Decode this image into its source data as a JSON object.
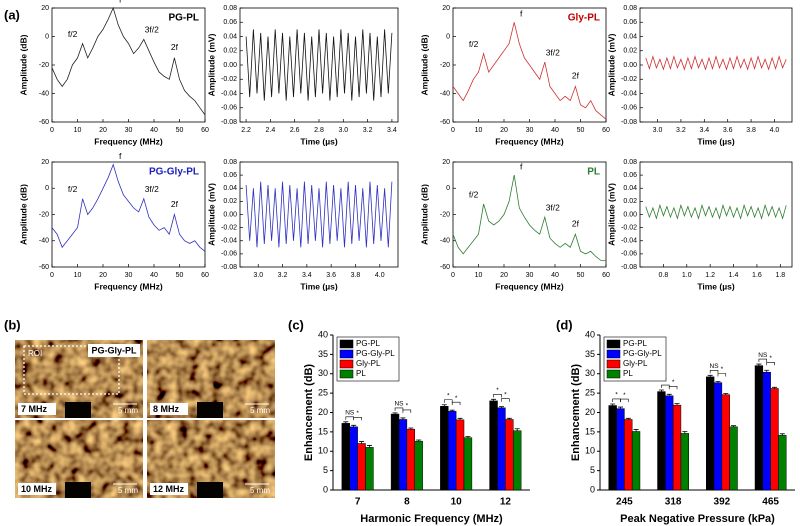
{
  "panels": [
    "(a)",
    "(b)",
    "(c)",
    "(d)"
  ],
  "images": {
    "roi": "ROI",
    "sample": "PG-Gly-PL",
    "tiles": [
      {
        "label": "7 MHz",
        "scale": "5 mm"
      },
      {
        "label": "8 MHz",
        "scale": "5 mm"
      },
      {
        "label": "10 MHz",
        "scale": "5 mm"
      },
      {
        "label": "12 MHz",
        "scale": "5 mm"
      }
    ]
  },
  "chart_data": [
    {
      "type": "line",
      "title": "PG-PL",
      "title_color": "#000000",
      "color": "#222222",
      "xlabel": "Frequency (MHz)",
      "ylabel": "Amplitude (dB)",
      "annotations": [
        "f/2",
        "f",
        "3f/2",
        "2f"
      ],
      "x": [
        0,
        2,
        4,
        6,
        8,
        10,
        12,
        14,
        16,
        18,
        20,
        22,
        24,
        26,
        28,
        30,
        32,
        34,
        36,
        38,
        40,
        42,
        44,
        46,
        48,
        50,
        52,
        54,
        56,
        58,
        60
      ],
      "values": [
        -22,
        -30,
        -35,
        -30,
        -20,
        -15,
        -5,
        -15,
        -8,
        0,
        5,
        12,
        20,
        8,
        0,
        -5,
        -12,
        -8,
        -2,
        -10,
        -18,
        -25,
        -28,
        -30,
        -15,
        -30,
        -38,
        -42,
        -45,
        -50,
        -55
      ],
      "xlim": [
        0,
        60
      ],
      "ylim": [
        -60,
        20
      ],
      "xticks": [
        0,
        10,
        20,
        30,
        40,
        50,
        60
      ],
      "yticks": [
        -60,
        -40,
        -20,
        0,
        20
      ]
    },
    {
      "type": "line",
      "color": "#111111",
      "xlabel": "Time (µs)",
      "ylabel": "Amplitude (mV)",
      "x": [
        2.2,
        2.23,
        2.26,
        2.29,
        2.32,
        2.35,
        2.38,
        2.41,
        2.44,
        2.47,
        2.5,
        2.53,
        2.56,
        2.59,
        2.62,
        2.65,
        2.68,
        2.71,
        2.74,
        2.77,
        2.8,
        2.83,
        2.86,
        2.89,
        2.92,
        2.95,
        2.98,
        3.01,
        3.04,
        3.07,
        3.1,
        3.13,
        3.16,
        3.19,
        3.22,
        3.25,
        3.28,
        3.31,
        3.34,
        3.37,
        3.4
      ],
      "values": [
        0.04,
        -0.045,
        0.05,
        -0.04,
        0.045,
        -0.05,
        0.04,
        -0.045,
        0.05,
        -0.04,
        0.045,
        -0.05,
        0.04,
        -0.045,
        0.05,
        -0.04,
        0.045,
        -0.05,
        0.04,
        -0.045,
        0.05,
        -0.04,
        0.045,
        -0.05,
        0.04,
        -0.045,
        0.05,
        -0.04,
        0.045,
        -0.05,
        0.04,
        -0.045,
        0.05,
        -0.04,
        0.045,
        -0.05,
        0.04,
        -0.045,
        0.05,
        -0.04,
        0.045
      ],
      "xlim": [
        2.15,
        3.45
      ],
      "ylim": [
        -0.08,
        0.08
      ],
      "xticks": [
        2.2,
        2.4,
        2.6,
        2.8,
        {
          "value": 3,
          "label": "3.0"
        },
        3.2,
        3.4
      ],
      "yticks": [
        -0.08,
        -0.06,
        -0.04,
        -0.02,
        {
          "value": 0,
          "label": "0.00"
        },
        0.02,
        0.04,
        0.06,
        0.08
      ]
    },
    {
      "type": "line",
      "title": "Gly-PL",
      "title_color": "#c00000",
      "color": "#d03030",
      "xlabel": "Frequency (MHz)",
      "ylabel": "Amplitude (dB)",
      "annotations": [
        "f/2",
        "f",
        "3f/2",
        "2f"
      ],
      "x": [
        0,
        2,
        4,
        6,
        8,
        10,
        12,
        14,
        16,
        18,
        20,
        22,
        24,
        26,
        28,
        30,
        32,
        34,
        36,
        38,
        40,
        42,
        44,
        46,
        48,
        50,
        52,
        54,
        56,
        58,
        60
      ],
      "values": [
        -35,
        -40,
        -45,
        -38,
        -30,
        -25,
        -12,
        -25,
        -20,
        -15,
        -10,
        -5,
        10,
        -5,
        -15,
        -20,
        -25,
        -30,
        -18,
        -35,
        -40,
        -45,
        -42,
        -45,
        -35,
        -48,
        -50,
        -45,
        -52,
        -55,
        -58
      ],
      "xlim": [
        0,
        60
      ],
      "ylim": [
        -60,
        20
      ],
      "xticks": [
        0,
        10,
        20,
        30,
        40,
        50,
        60
      ],
      "yticks": [
        -60,
        -40,
        -20,
        0,
        20
      ]
    },
    {
      "type": "line",
      "color": "#d03030",
      "xlabel": "Time (µs)",
      "ylabel": "Amplitude (mV)",
      "x": [
        2.9,
        2.93,
        2.96,
        2.99,
        3.02,
        3.05,
        3.08,
        3.11,
        3.14,
        3.17,
        3.2,
        3.23,
        3.26,
        3.29,
        3.32,
        3.35,
        3.38,
        3.41,
        3.44,
        3.47,
        3.5,
        3.53,
        3.56,
        3.59,
        3.62,
        3.65,
        3.68,
        3.71,
        3.74,
        3.77,
        3.8,
        3.83,
        3.86,
        3.89,
        3.92,
        3.95,
        3.98,
        4.01,
        4.04,
        4.07,
        4.1
      ],
      "values": [
        0.01,
        -0.005,
        0.012,
        -0.004,
        0.008,
        -0.006,
        0.01,
        -0.005,
        0.012,
        -0.004,
        0.008,
        -0.006,
        0.01,
        -0.005,
        0.012,
        -0.004,
        0.008,
        -0.006,
        0.01,
        -0.005,
        0.012,
        -0.004,
        0.008,
        -0.006,
        0.01,
        -0.005,
        0.012,
        -0.004,
        0.008,
        -0.006,
        0.01,
        -0.005,
        0.012,
        -0.004,
        0.008,
        -0.006,
        0.01,
        -0.005,
        0.012,
        -0.004,
        0.008
      ],
      "xlim": [
        2.85,
        4.15
      ],
      "ylim": [
        -0.08,
        0.08
      ],
      "xticks": [
        {
          "value": 3,
          "label": "3.0"
        },
        3.2,
        3.4,
        3.6,
        3.8,
        {
          "value": 4,
          "label": "4.0"
        }
      ],
      "yticks": [
        -0.08,
        -0.06,
        -0.04,
        -0.02,
        {
          "value": 0,
          "label": "0.00"
        },
        0.02,
        0.04,
        0.06,
        0.08
      ]
    },
    {
      "type": "line",
      "title": "PG-Gly-PL",
      "title_color": "#2020c0",
      "color": "#3030c0",
      "xlabel": "Frequency (MHz)",
      "ylabel": "Amplitude (dB)",
      "annotations": [
        "f/2",
        "f",
        "3f/2",
        "2f"
      ],
      "x": [
        0,
        2,
        4,
        6,
        8,
        10,
        12,
        14,
        16,
        18,
        20,
        22,
        24,
        26,
        28,
        30,
        32,
        34,
        36,
        38,
        40,
        42,
        44,
        46,
        48,
        50,
        52,
        54,
        56,
        58,
        60
      ],
      "values": [
        -30,
        -35,
        -45,
        -40,
        -35,
        -30,
        -8,
        -20,
        -15,
        -8,
        0,
        8,
        18,
        5,
        -5,
        -10,
        -15,
        -18,
        -8,
        -22,
        -28,
        -32,
        -30,
        -35,
        -20,
        -35,
        -40,
        -42,
        -40,
        -45,
        -48
      ],
      "xlim": [
        0,
        60
      ],
      "ylim": [
        -60,
        20
      ],
      "xticks": [
        0,
        10,
        20,
        30,
        40,
        50,
        60
      ],
      "yticks": [
        -60,
        -40,
        -20,
        0,
        20
      ]
    },
    {
      "type": "line",
      "color": "#3030c0",
      "xlabel": "Time (µs)",
      "ylabel": "Amplitude (mV)",
      "x": [
        2.9,
        2.93,
        2.96,
        2.99,
        3.02,
        3.05,
        3.08,
        3.11,
        3.14,
        3.17,
        3.2,
        3.23,
        3.26,
        3.29,
        3.32,
        3.35,
        3.38,
        3.41,
        3.44,
        3.47,
        3.5,
        3.53,
        3.56,
        3.59,
        3.62,
        3.65,
        3.68,
        3.71,
        3.74,
        3.77,
        3.8,
        3.83,
        3.86,
        3.89,
        3.92,
        3.95,
        3.98,
        4.01,
        4.04,
        4.07,
        4.1
      ],
      "values": [
        0.045,
        -0.04,
        0.04,
        -0.05,
        0.05,
        -0.045,
        0.045,
        -0.04,
        0.04,
        -0.05,
        0.05,
        -0.045,
        0.045,
        -0.04,
        0.04,
        -0.05,
        0.05,
        -0.045,
        0.045,
        -0.04,
        0.04,
        -0.05,
        0.05,
        -0.045,
        0.045,
        -0.04,
        0.04,
        -0.05,
        0.05,
        -0.045,
        0.045,
        -0.04,
        0.04,
        -0.05,
        0.05,
        -0.045,
        0.045,
        -0.04,
        0.04,
        -0.05,
        0.05
      ],
      "xlim": [
        2.85,
        4.15
      ],
      "ylim": [
        -0.08,
        0.08
      ],
      "xticks": [
        {
          "value": 3,
          "label": "3.0"
        },
        3.2,
        3.4,
        3.6,
        3.8,
        {
          "value": 4,
          "label": "4.0"
        }
      ],
      "yticks": [
        -0.08,
        -0.06,
        -0.04,
        -0.02,
        {
          "value": 0,
          "label": "0.00"
        },
        0.02,
        0.04,
        0.06,
        0.08
      ]
    },
    {
      "type": "line",
      "title": "PL",
      "title_color": "#2e7d32",
      "color": "#2e7d32",
      "xlabel": "Frequency (MHz)",
      "ylabel": "Amplitude (dB)",
      "annotations": [
        "f/2",
        "f",
        "3f/2",
        "2f"
      ],
      "x": [
        0,
        2,
        4,
        6,
        8,
        10,
        12,
        14,
        16,
        18,
        20,
        22,
        24,
        26,
        28,
        30,
        32,
        34,
        36,
        38,
        40,
        42,
        44,
        46,
        48,
        50,
        52,
        54,
        56,
        58,
        60
      ],
      "values": [
        -35,
        -45,
        -50,
        -45,
        -40,
        -35,
        -12,
        -25,
        -28,
        -25,
        -20,
        -10,
        10,
        -15,
        -22,
        -28,
        -32,
        -35,
        -22,
        -38,
        -42,
        -45,
        -42,
        -45,
        -35,
        -48,
        -50,
        -48,
        -52,
        -55,
        -55
      ],
      "xlim": [
        0,
        60
      ],
      "ylim": [
        -60,
        20
      ],
      "xticks": [
        0,
        10,
        20,
        30,
        40,
        50,
        60
      ],
      "yticks": [
        -60,
        -40,
        -20,
        0,
        20
      ]
    },
    {
      "type": "line",
      "color": "#2e7d32",
      "xlabel": "Time (µs)",
      "ylabel": "Amplitude (mV)",
      "x": [
        0.65,
        0.68,
        0.71,
        0.74,
        0.77,
        0.8,
        0.83,
        0.86,
        0.89,
        0.92,
        0.95,
        0.98,
        1.01,
        1.04,
        1.07,
        1.1,
        1.13,
        1.16,
        1.19,
        1.22,
        1.25,
        1.28,
        1.31,
        1.34,
        1.37,
        1.4,
        1.43,
        1.46,
        1.49,
        1.52,
        1.55,
        1.58,
        1.61,
        1.64,
        1.67,
        1.7,
        1.73,
        1.76,
        1.79,
        1.82,
        1.85
      ],
      "values": [
        0.012,
        -0.004,
        0.01,
        -0.006,
        0.014,
        -0.002,
        0.012,
        -0.004,
        0.01,
        -0.006,
        0.014,
        -0.002,
        0.012,
        -0.004,
        0.01,
        -0.006,
        0.014,
        -0.002,
        0.012,
        -0.004,
        0.01,
        -0.006,
        0.014,
        -0.002,
        0.012,
        -0.004,
        0.01,
        -0.006,
        0.014,
        -0.002,
        0.012,
        -0.004,
        0.01,
        -0.006,
        0.014,
        -0.002,
        0.012,
        -0.004,
        0.01,
        -0.006,
        0.014
      ],
      "xlim": [
        0.6,
        1.9
      ],
      "ylim": [
        -0.08,
        0.08
      ],
      "xticks": [
        0.8,
        {
          "value": 1,
          "label": "1.0"
        },
        1.2,
        1.4,
        1.6,
        1.8
      ],
      "yticks": [
        -0.08,
        -0.06,
        -0.04,
        -0.02,
        {
          "value": 0,
          "label": "0.00"
        },
        0.02,
        0.04,
        0.06,
        0.08
      ]
    },
    {
      "type": "bar",
      "xlabel": "Harmonic Frequency (MHz)",
      "ylabel": "Enhancement (dB)",
      "legend": "upper left",
      "categories": [
        "7",
        "8",
        "10",
        "12"
      ],
      "series": [
        {
          "name": "PG-PL",
          "color": "#000000",
          "values": [
            17.2,
            19.6,
            21.6,
            23.0
          ],
          "errors": [
            0.4,
            0.3,
            0.4,
            0.4
          ]
        },
        {
          "name": "PG-Gly-PL",
          "color": "#0000ff",
          "values": [
            16.3,
            18.2,
            20.3,
            21.2
          ],
          "errors": [
            0.4,
            0.4,
            0.3,
            0.3
          ]
        },
        {
          "name": "Gly-PL",
          "color": "#ff0000",
          "values": [
            12.0,
            15.7,
            18.1,
            18.2
          ],
          "errors": [
            0.5,
            0.3,
            0.4,
            0.3
          ]
        },
        {
          "name": "PL",
          "color": "#008000",
          "values": [
            11.0,
            12.6,
            13.5,
            15.3
          ],
          "errors": [
            0.5,
            0.3,
            0.3,
            0.5
          ]
        }
      ],
      "significance": [
        [
          "NS",
          "*"
        ],
        [
          "NS",
          "*"
        ],
        [
          "*",
          "*"
        ],
        [
          "*",
          "*"
        ]
      ],
      "ylim": [
        0,
        40
      ],
      "yticks": [
        0,
        5,
        10,
        15,
        20,
        25,
        30,
        35,
        40
      ]
    },
    {
      "type": "bar",
      "xlabel": "Peak Negative Pressure (kPa)",
      "ylabel": "Enhancement (dB)",
      "legend": "upper left",
      "categories": [
        "245",
        "318",
        "392",
        "465"
      ],
      "series": [
        {
          "name": "PG-PL",
          "color": "#000000",
          "values": [
            21.8,
            25.4,
            29.2,
            32.1
          ],
          "errors": [
            0.4,
            0.4,
            0.4,
            0.4
          ]
        },
        {
          "name": "PG-Gly-PL",
          "color": "#0000ff",
          "values": [
            21.0,
            24.3,
            27.7,
            30.4
          ],
          "errors": [
            0.4,
            0.4,
            0.3,
            0.5
          ]
        },
        {
          "name": "Gly-PL",
          "color": "#ff0000",
          "values": [
            18.2,
            21.9,
            24.6,
            26.2
          ],
          "errors": [
            0.3,
            0.4,
            0.3,
            0.3
          ]
        },
        {
          "name": "PL",
          "color": "#008000",
          "values": [
            15.1,
            14.6,
            16.3,
            14.1
          ],
          "errors": [
            0.5,
            0.5,
            0.3,
            0.4
          ]
        }
      ],
      "significance": [
        [
          "*",
          "*"
        ],
        [
          "*",
          "*"
        ],
        [
          "NS",
          "*"
        ],
        [
          "NS",
          "*"
        ]
      ],
      "ylim": [
        0,
        40
      ],
      "yticks": [
        0,
        5,
        10,
        15,
        20,
        25,
        30,
        35,
        40
      ]
    }
  ]
}
